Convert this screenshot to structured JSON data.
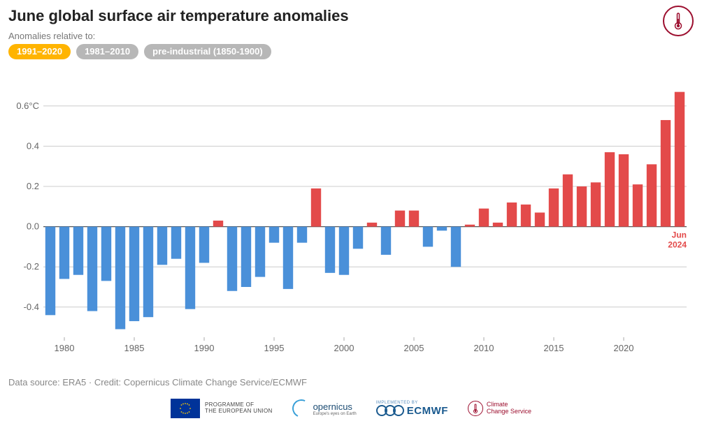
{
  "title": "June global surface air temperature anomalies",
  "subtitle": "Anomalies relative to:",
  "baselines": [
    {
      "label": "1991–2020",
      "active": true
    },
    {
      "label": "1981–2010",
      "active": false
    },
    {
      "label": "pre-industrial (1850-1900)",
      "active": false
    }
  ],
  "thermo_icon": "thermometer-icon",
  "source_line": "Data source: ERA5 · Credit: Copernicus Climate Change Service/ECMWF",
  "chart": {
    "type": "bar",
    "start_year": 1979,
    "values": [
      -0.44,
      -0.26,
      -0.24,
      -0.42,
      -0.27,
      -0.51,
      -0.47,
      -0.45,
      -0.19,
      -0.16,
      -0.41,
      -0.18,
      0.03,
      -0.32,
      -0.3,
      -0.25,
      -0.08,
      -0.31,
      -0.08,
      0.19,
      -0.23,
      -0.24,
      -0.11,
      0.02,
      -0.14,
      0.08,
      0.08,
      -0.1,
      -0.02,
      -0.2,
      0.01,
      0.09,
      0.02,
      0.12,
      0.11,
      0.07,
      0.19,
      0.26,
      0.2,
      0.22,
      0.37,
      0.36,
      0.21,
      0.31,
      0.53,
      0.67
    ],
    "last_label_line1": "Jun",
    "last_label_line2": "2024",
    "ylim": [
      -0.55,
      0.7
    ],
    "yticks": [
      -0.4,
      -0.2,
      0.0,
      0.2,
      0.4,
      0.6
    ],
    "ytick_labels": [
      "-0.4",
      "-0.2",
      "0.0",
      "0.2",
      "0.4",
      "0.6°C"
    ],
    "xticks": [
      1980,
      1985,
      1990,
      1995,
      2000,
      2005,
      2010,
      2015,
      2020
    ],
    "neg_color": "#4a90d9",
    "pos_color": "#e34a4a",
    "grid_color": "#cccccc",
    "zero_color": "#555555",
    "bar_width_ratio": 0.72,
    "background_color": "#ffffff",
    "axis_fontsize": 13,
    "title_fontsize": 22
  },
  "footer": {
    "eu_text": "PROGRAMME OF\nTHE EUROPEAN UNION",
    "copernicus": "opernicus",
    "copernicus_sub": "Europe's eyes on Earth",
    "ecmwf_top": "IMPLEMENTED BY",
    "ecmwf": "ECMWF",
    "ccs": "Climate\nChange Service"
  }
}
